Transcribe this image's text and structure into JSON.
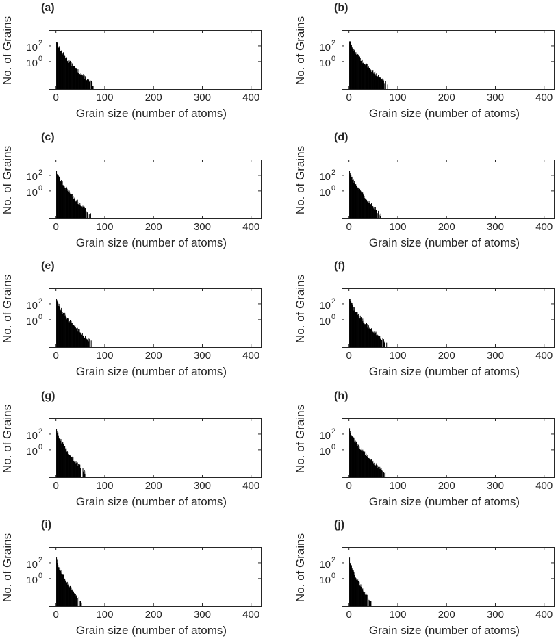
{
  "chart_data": [
    {
      "type": "bar",
      "panel_label": "(a)",
      "xlabel": "Grain size (number of atoms)",
      "ylabel": "No. of Grains",
      "xlim": [
        -15,
        420
      ],
      "ylim_log10": [
        -3.5,
        4
      ],
      "xticks": [
        "0",
        "100",
        "200",
        "300",
        "400"
      ],
      "yticks": [
        {
          "base": "10",
          "exp": "2",
          "value": 100
        },
        {
          "base": "10",
          "exp": "0",
          "value": 1
        }
      ],
      "bin_width": 1,
      "tail_end": 78
    },
    {
      "type": "bar",
      "panel_label": "(b)",
      "xlabel": "Grain size (number of atoms)",
      "ylabel": "No. of Grains",
      "xlim": [
        -15,
        420
      ],
      "ylim_log10": [
        -3.5,
        4
      ],
      "xticks": [
        "0",
        "100",
        "200",
        "300",
        "400"
      ],
      "yticks": [
        {
          "base": "10",
          "exp": "2",
          "value": 100
        },
        {
          "base": "10",
          "exp": "0",
          "value": 1
        }
      ],
      "bin_width": 1,
      "tail_end": 82
    },
    {
      "type": "bar",
      "panel_label": "(c)",
      "xlabel": "Grain size (number of atoms)",
      "ylabel": "No. of Grains",
      "xlim": [
        -15,
        420
      ],
      "ylim_log10": [
        -3.5,
        4
      ],
      "xticks": [
        "0",
        "100",
        "200",
        "300",
        "400"
      ],
      "yticks": [
        {
          "base": "10",
          "exp": "2",
          "value": 100
        },
        {
          "base": "10",
          "exp": "0",
          "value": 1
        }
      ],
      "bin_width": 1,
      "tail_end": 72
    },
    {
      "type": "bar",
      "panel_label": "(d)",
      "xlabel": "Grain size (number of atoms)",
      "ylabel": "No. of Grains",
      "xlim": [
        -15,
        420
      ],
      "ylim_log10": [
        -3.5,
        4
      ],
      "xticks": [
        "0",
        "100",
        "200",
        "300",
        "400"
      ],
      "yticks": [
        {
          "base": "10",
          "exp": "2",
          "value": 100
        },
        {
          "base": "10",
          "exp": "0",
          "value": 1
        }
      ],
      "bin_width": 1,
      "tail_end": 65
    },
    {
      "type": "bar",
      "panel_label": "(e)",
      "xlabel": "Grain size (number of atoms)",
      "ylabel": "No. of Grains",
      "xlim": [
        -15,
        420
      ],
      "ylim_log10": [
        -3.5,
        4
      ],
      "xticks": [
        "0",
        "100",
        "200",
        "300",
        "400"
      ],
      "yticks": [
        {
          "base": "10",
          "exp": "2",
          "value": 100
        },
        {
          "base": "10",
          "exp": "0",
          "value": 1
        }
      ],
      "bin_width": 1,
      "tail_end": 75
    },
    {
      "type": "bar",
      "panel_label": "(f)",
      "xlabel": "Grain size (number of atoms)",
      "ylabel": "No. of Grains",
      "xlim": [
        -15,
        420
      ],
      "ylim_log10": [
        -3.5,
        4
      ],
      "xticks": [
        "0",
        "100",
        "200",
        "300",
        "400"
      ],
      "yticks": [
        {
          "base": "10",
          "exp": "2",
          "value": 100
        },
        {
          "base": "10",
          "exp": "0",
          "value": 1
        }
      ],
      "bin_width": 1,
      "tail_end": 78
    },
    {
      "type": "bar",
      "panel_label": "(g)",
      "xlabel": "Grain size (number of atoms)",
      "ylabel": "No. of Grains",
      "xlim": [
        -15,
        420
      ],
      "ylim_log10": [
        -3.5,
        4
      ],
      "xticks": [
        "0",
        "100",
        "200",
        "300",
        "400"
      ],
      "yticks": [
        {
          "base": "10",
          "exp": "2",
          "value": 100
        },
        {
          "base": "10",
          "exp": "0",
          "value": 1
        }
      ],
      "bin_width": 1,
      "tail_end": 62
    },
    {
      "type": "bar",
      "panel_label": "(h)",
      "xlabel": "Grain size (number of atoms)",
      "ylabel": "No. of Grains",
      "xlim": [
        -15,
        420
      ],
      "ylim_log10": [
        -3.5,
        4
      ],
      "xticks": [
        "0",
        "100",
        "200",
        "300",
        "400"
      ],
      "yticks": [
        {
          "base": "10",
          "exp": "2",
          "value": 100
        },
        {
          "base": "10",
          "exp": "0",
          "value": 1
        }
      ],
      "bin_width": 1,
      "tail_end": 75
    },
    {
      "type": "bar",
      "panel_label": "(i)",
      "xlabel": "Grain size (number of atoms)",
      "ylabel": "No. of Grains",
      "xlim": [
        -15,
        420
      ],
      "ylim_log10": [
        -3.5,
        4
      ],
      "xticks": [
        "0",
        "100",
        "200",
        "300",
        "400"
      ],
      "yticks": [
        {
          "base": "10",
          "exp": "2",
          "value": 100
        },
        {
          "base": "10",
          "exp": "0",
          "value": 1
        }
      ],
      "bin_width": 1,
      "tail_end": 52
    },
    {
      "type": "bar",
      "panel_label": "(j)",
      "xlabel": "Grain size (number of atoms)",
      "ylabel": "No. of Grains",
      "xlim": [
        -15,
        420
      ],
      "ylim_log10": [
        -3.5,
        4
      ],
      "xticks": [
        "0",
        "100",
        "200",
        "300",
        "400"
      ],
      "yticks": [
        {
          "base": "10",
          "exp": "2",
          "value": 100
        },
        {
          "base": "10",
          "exp": "0",
          "value": 1
        }
      ],
      "bin_width": 1,
      "tail_end": 45
    }
  ],
  "style": {
    "bar_color": "#000000",
    "axis_color": "#262626",
    "background": "#ffffff"
  }
}
